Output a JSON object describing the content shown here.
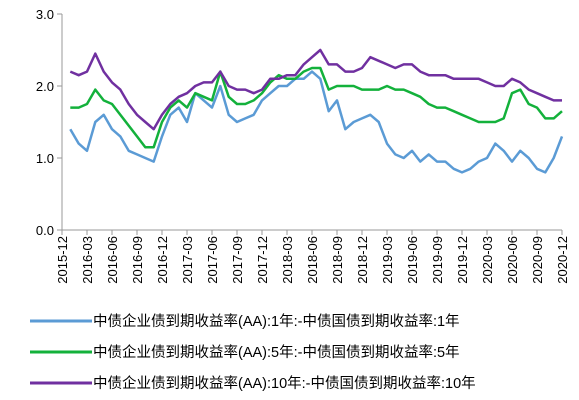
{
  "chart_data": {
    "type": "line",
    "x": [
      "2016-01",
      "2016-02",
      "2016-03",
      "2016-04",
      "2016-05",
      "2016-06",
      "2016-07",
      "2016-08",
      "2016-09",
      "2016-10",
      "2016-11",
      "2016-12",
      "2017-01",
      "2017-02",
      "2017-03",
      "2017-04",
      "2017-05",
      "2017-06",
      "2017-07",
      "2017-08",
      "2017-09",
      "2017-10",
      "2017-11",
      "2017-12",
      "2018-01",
      "2018-02",
      "2018-03",
      "2018-04",
      "2018-05",
      "2018-06",
      "2018-07",
      "2018-08",
      "2018-09",
      "2018-10",
      "2018-11",
      "2018-12",
      "2019-01",
      "2019-02",
      "2019-03",
      "2019-04",
      "2019-05",
      "2019-06",
      "2019-07",
      "2019-08",
      "2019-09",
      "2019-10",
      "2019-11",
      "2019-12",
      "2020-01",
      "2020-02",
      "2020-03",
      "2020-04",
      "2020-05",
      "2020-06",
      "2020-07",
      "2020-08",
      "2020-09",
      "2020-10",
      "2020-11",
      "2020-12"
    ],
    "xlim": [
      "2015-12",
      "2020-12"
    ],
    "xticks": [
      "2015-12",
      "2016-03",
      "2016-06",
      "2016-09",
      "2016-12",
      "2017-03",
      "2017-06",
      "2017-09",
      "2017-12",
      "2018-03",
      "2018-06",
      "2018-09",
      "2018-12",
      "2019-03",
      "2019-06",
      "2019-09",
      "2019-12",
      "2020-03",
      "2020-06",
      "2020-09",
      "2020-12"
    ],
    "ylim": [
      0,
      3
    ],
    "yticks": [
      {
        "value": 0,
        "label": "0.0"
      },
      {
        "value": 1,
        "label": "1.0"
      },
      {
        "value": 2,
        "label": "2.0"
      },
      {
        "value": 3,
        "label": "3.0"
      }
    ],
    "grid": false,
    "legend": "bottom",
    "series": [
      {
        "name": "中债企业债到期收益率(AA):1年:-中债国债到期收益率:1年",
        "color": "#5b9bd5",
        "values": [
          1.4,
          1.2,
          1.1,
          1.5,
          1.6,
          1.4,
          1.3,
          1.1,
          1.05,
          1.0,
          0.95,
          1.3,
          1.6,
          1.7,
          1.5,
          1.9,
          1.8,
          1.7,
          2.0,
          1.6,
          1.5,
          1.55,
          1.6,
          1.8,
          1.9,
          2.0,
          2.0,
          2.1,
          2.1,
          2.2,
          2.1,
          1.65,
          1.8,
          1.4,
          1.5,
          1.55,
          1.6,
          1.5,
          1.2,
          1.05,
          1.0,
          1.1,
          0.95,
          1.05,
          0.95,
          0.95,
          0.85,
          0.8,
          0.85,
          0.95,
          1.0,
          1.2,
          1.1,
          0.95,
          1.1,
          1.0,
          0.85,
          0.8,
          1.0,
          1.3
        ]
      },
      {
        "name": "中债企业债到期收益率(AA):5年:-中债国债到期收益率:5年",
        "color": "#13b13b",
        "values": [
          1.7,
          1.7,
          1.75,
          1.95,
          1.8,
          1.75,
          1.6,
          1.45,
          1.3,
          1.15,
          1.15,
          1.5,
          1.7,
          1.8,
          1.7,
          1.9,
          1.85,
          1.8,
          2.2,
          1.85,
          1.75,
          1.75,
          1.8,
          1.9,
          2.05,
          2.15,
          2.1,
          2.1,
          2.2,
          2.25,
          2.25,
          1.95,
          2.0,
          2.0,
          2.0,
          1.95,
          1.95,
          1.95,
          2.0,
          1.95,
          1.95,
          1.9,
          1.85,
          1.75,
          1.7,
          1.7,
          1.65,
          1.6,
          1.55,
          1.5,
          1.5,
          1.5,
          1.55,
          1.9,
          1.95,
          1.75,
          1.7,
          1.55,
          1.55,
          1.65
        ]
      },
      {
        "name": "中债企业债到期收益率(AA):10年:-中债国债到期收益率:10年",
        "color": "#7030a0",
        "values": [
          2.2,
          2.15,
          2.2,
          2.45,
          2.2,
          2.05,
          1.95,
          1.75,
          1.6,
          1.5,
          1.4,
          1.6,
          1.75,
          1.85,
          1.9,
          2.0,
          2.05,
          2.05,
          2.2,
          2.0,
          1.95,
          1.95,
          1.9,
          1.95,
          2.1,
          2.1,
          2.15,
          2.15,
          2.3,
          2.4,
          2.5,
          2.3,
          2.3,
          2.2,
          2.2,
          2.25,
          2.4,
          2.35,
          2.3,
          2.25,
          2.3,
          2.3,
          2.2,
          2.15,
          2.15,
          2.15,
          2.1,
          2.1,
          2.1,
          2.1,
          2.05,
          2.0,
          2.0,
          2.1,
          2.05,
          1.95,
          1.9,
          1.85,
          1.8,
          1.8
        ]
      }
    ]
  }
}
